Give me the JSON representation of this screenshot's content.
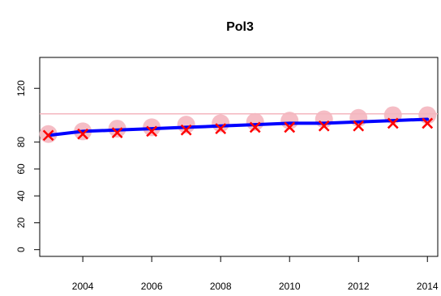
{
  "chart_data": {
    "type": "line",
    "title": "Pol3",
    "xlabel": "",
    "ylabel": "",
    "x": [
      2003,
      2004,
      2005,
      2006,
      2007,
      2008,
      2009,
      2010,
      2011,
      2012,
      2013,
      2014
    ],
    "xlim": [
      2002.75,
      2014.3
    ],
    "ylim": [
      -5,
      143
    ],
    "x_ticks": [
      2004,
      2006,
      2008,
      2010,
      2012,
      2014
    ],
    "y_ticks": [
      0,
      20,
      40,
      60,
      80,
      120
    ],
    "reference_line": 101,
    "series": [
      {
        "marker": "circle",
        "color": "#f4b6bf",
        "values": [
          86,
          88,
          90,
          91,
          93,
          94,
          95,
          96,
          97,
          98,
          100,
          100
        ]
      },
      {
        "marker": "cross",
        "color": "#ff0000",
        "values": [
          85,
          86,
          87,
          88,
          89,
          90,
          91,
          91,
          92,
          92,
          94,
          94
        ]
      },
      {
        "marker": "line",
        "color": "#0000ff",
        "values": [
          85,
          88,
          89,
          90,
          91,
          92,
          93,
          94,
          94,
          95,
          96,
          97
        ]
      }
    ],
    "colors": {
      "reference_line": "#f4b6bf"
    },
    "grid": false,
    "legend": "none"
  }
}
